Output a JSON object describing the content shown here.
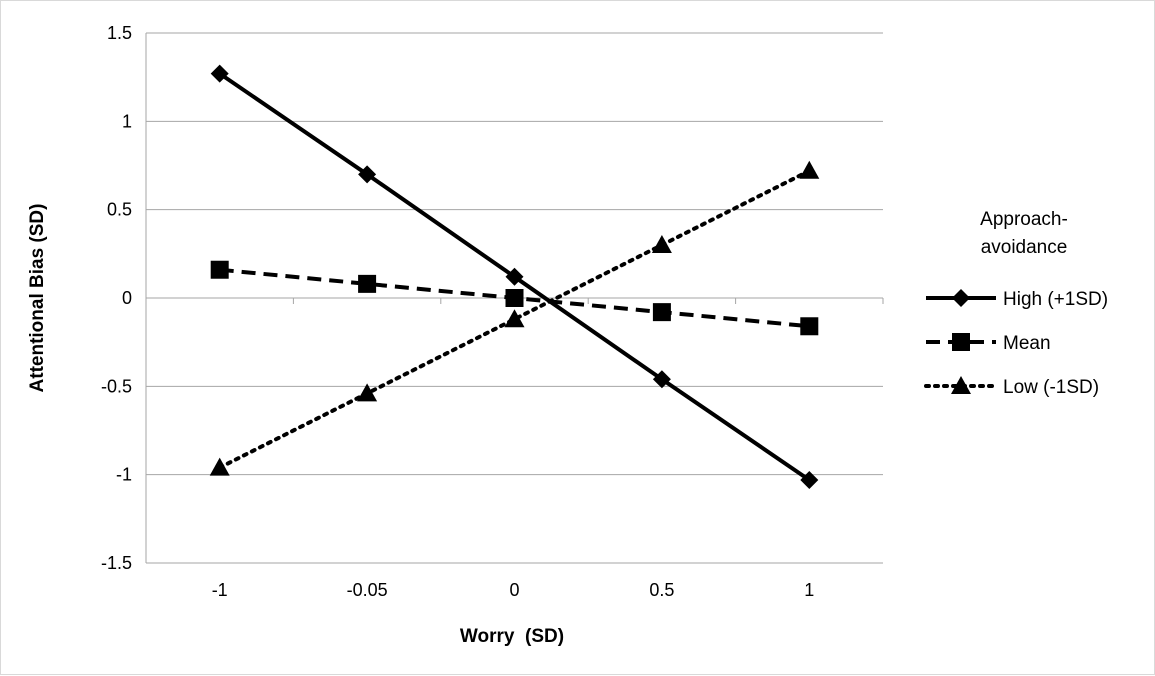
{
  "chart_data": {
    "type": "line",
    "categories": [
      "-1",
      "-0.05",
      "0",
      "0.5",
      "1"
    ],
    "series": [
      {
        "name": "High (+1SD)",
        "values": [
          1.27,
          0.7,
          0.12,
          -0.46,
          -1.03
        ],
        "marker": "diamond",
        "dash": "solid",
        "color": "#000000"
      },
      {
        "name": "Mean",
        "values": [
          0.16,
          0.08,
          0.0,
          -0.08,
          -0.16
        ],
        "marker": "square",
        "dash": "dashed",
        "color": "#000000"
      },
      {
        "name": "Low (-1SD)",
        "values": [
          -0.96,
          -0.54,
          -0.12,
          0.3,
          0.72
        ],
        "marker": "triangle",
        "dash": "dotted",
        "color": "#000000"
      }
    ],
    "xlabel": "Worry  (SD)",
    "ylabel": "Attentional Bias (SD)",
    "ylim": [
      -1.5,
      1.5
    ],
    "yticks": [
      "1.5",
      "1",
      "0.5",
      "0",
      "-0.5",
      "-1",
      "-1.5"
    ],
    "legend_title_line1": "Approach-",
    "legend_title_line2": "avoidance",
    "legend_position": "right",
    "grid": "horizontal"
  }
}
